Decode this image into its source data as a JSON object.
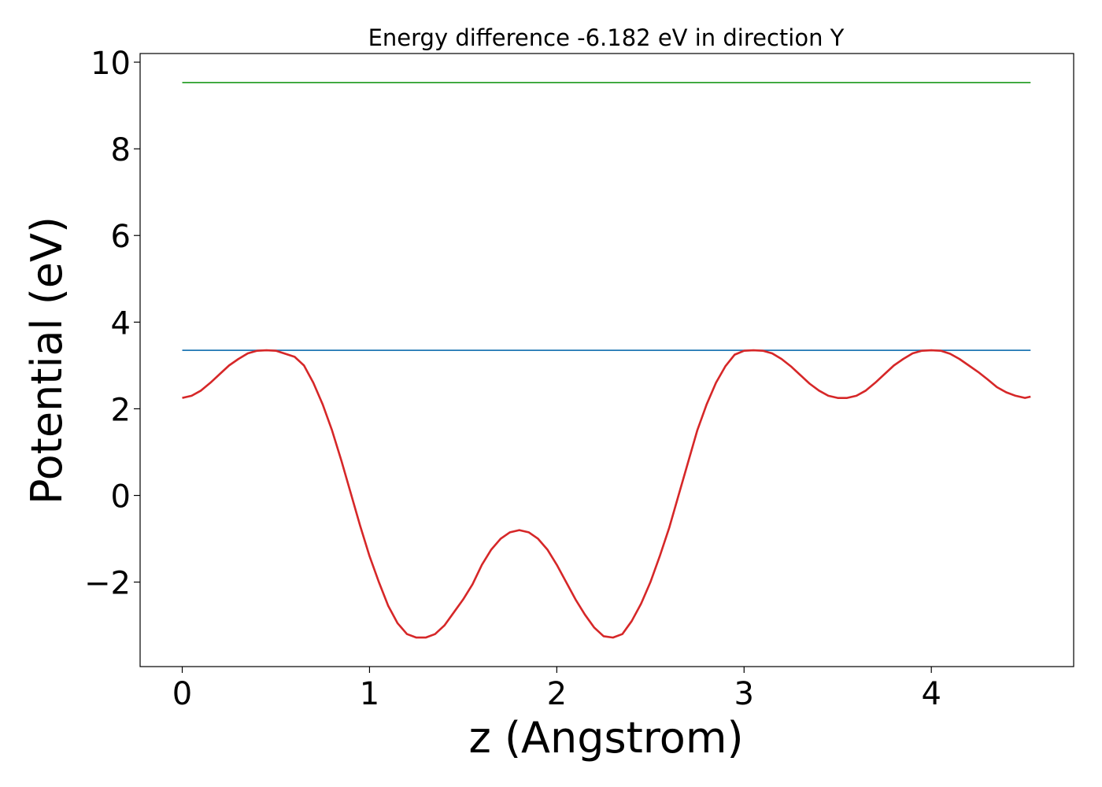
{
  "chart_data": {
    "type": "line",
    "title": "Energy difference -6.182 eV in direction Y",
    "xlabel": "z (Angstrom)",
    "ylabel": "Potential (eV)",
    "xlim": [
      -0.225,
      4.76
    ],
    "ylim": [
      -3.95,
      10.2
    ],
    "xticks": [
      0,
      1,
      2,
      3,
      4
    ],
    "xtick_labels": [
      "0",
      "1",
      "2",
      "3",
      "4"
    ],
    "yticks": [
      -2,
      0,
      2,
      4,
      6,
      8,
      10
    ],
    "ytick_labels": [
      "−2",
      "0",
      "2",
      "4",
      "6",
      "8",
      "10"
    ],
    "grid": false,
    "series": [
      {
        "color": "#2ca02c",
        "x": [
          0,
          4.53
        ],
        "y": [
          9.53,
          9.53
        ]
      },
      {
        "color": "#1f77b4",
        "x": [
          0,
          4.53
        ],
        "y": [
          3.35,
          3.35
        ]
      },
      {
        "color": "#d62728",
        "x": [
          0.0,
          0.05,
          0.1,
          0.15,
          0.2,
          0.25,
          0.3,
          0.35,
          0.4,
          0.45,
          0.5,
          0.55,
          0.6,
          0.65,
          0.7,
          0.75,
          0.8,
          0.85,
          0.9,
          0.95,
          1.0,
          1.05,
          1.1,
          1.15,
          1.2,
          1.25,
          1.3,
          1.35,
          1.4,
          1.45,
          1.5,
          1.55,
          1.6,
          1.65,
          1.7,
          1.75,
          1.8,
          1.85,
          1.9,
          1.95,
          2.0,
          2.05,
          2.1,
          2.15,
          2.2,
          2.25,
          2.3,
          2.35,
          2.4,
          2.45,
          2.5,
          2.55,
          2.6,
          2.65,
          2.7,
          2.75,
          2.8,
          2.85,
          2.9,
          2.95,
          3.0,
          3.05,
          3.1,
          3.15,
          3.2,
          3.25,
          3.3,
          3.35,
          3.4,
          3.45,
          3.5,
          3.55,
          3.6,
          3.65,
          3.7,
          3.75,
          3.8,
          3.85,
          3.9,
          3.95,
          4.0,
          4.05,
          4.1,
          4.15,
          4.2,
          4.25,
          4.3,
          4.35,
          4.4,
          4.45,
          4.5,
          4.53
        ],
        "y": [
          2.25,
          2.3,
          2.42,
          2.6,
          2.8,
          3.0,
          3.15,
          3.28,
          3.34,
          3.35,
          3.34,
          3.27,
          3.2,
          3.0,
          2.6,
          2.1,
          1.5,
          0.8,
          0.05,
          -0.7,
          -1.4,
          -2.0,
          -2.55,
          -2.95,
          -3.2,
          -3.28,
          -3.28,
          -3.2,
          -3.0,
          -2.7,
          -2.4,
          -2.05,
          -1.6,
          -1.25,
          -1.0,
          -0.85,
          -0.8,
          -0.85,
          -1.0,
          -1.25,
          -1.6,
          -2.0,
          -2.4,
          -2.75,
          -3.05,
          -3.25,
          -3.28,
          -3.2,
          -2.9,
          -2.5,
          -2.0,
          -1.4,
          -0.75,
          0.0,
          0.75,
          1.5,
          2.1,
          2.6,
          2.98,
          3.25,
          3.34,
          3.35,
          3.34,
          3.28,
          3.15,
          2.98,
          2.78,
          2.58,
          2.42,
          2.3,
          2.25,
          2.25,
          2.3,
          2.42,
          2.6,
          2.8,
          3.0,
          3.15,
          3.28,
          3.34,
          3.35,
          3.34,
          3.27,
          3.15,
          3.0,
          2.85,
          2.68,
          2.5,
          2.38,
          2.3,
          2.25,
          2.28
        ]
      }
    ]
  }
}
